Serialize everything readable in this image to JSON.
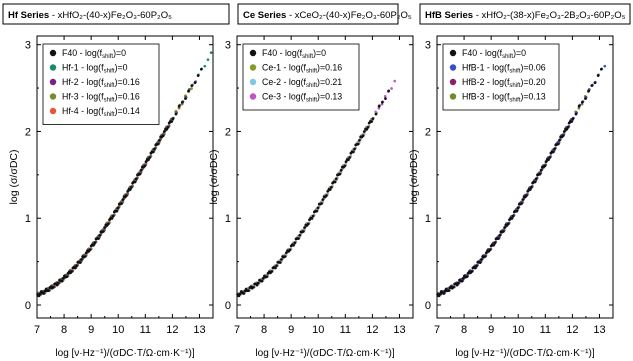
{
  "chart_data": [
    {
      "type": "scatter",
      "title_bold": "Hf Series",
      "title_rest": "- xHfO₂-(40-x)Fe₂O₃-60P₂O₅",
      "xlabel": "log [ν·Hz⁻¹)/(σDC·T/Ω·cm·K⁻¹)]",
      "ylabel": "log (σ/σDC)",
      "xlim": [
        7,
        13.5
      ],
      "ylim": [
        -0.15,
        3.1
      ],
      "xticks": [
        "7",
        "8",
        "9",
        "10",
        "11",
        "12",
        "13"
      ],
      "yticks": [
        "0",
        "1",
        "2",
        "3"
      ],
      "legend_position": "top-left",
      "series": [
        {
          "name": "F40 - log(fshift)=0",
          "color": "#111111",
          "x_max": 13.1
        },
        {
          "name": "Hf-1 - log(fshift)=0",
          "color": "#1b8a6b",
          "x_max": 13.45
        },
        {
          "name": "Hf-2 - log(fshift)=0.16",
          "color": "#7a1f86",
          "x_max": 12.9
        },
        {
          "name": "Hf-3 - log(fshift)=0.16",
          "color": "#7d8a2e",
          "x_max": 12.8
        },
        {
          "name": "Hf-4 - log(fshift)=0.14",
          "color": "#e8553a",
          "x_max": 12.7
        }
      ]
    },
    {
      "type": "scatter",
      "title_bold": "Ce Series",
      "title_rest": "- xCeO₂-(40-x)Fe₂O₃-60P₂O₅",
      "xlabel": "log [ν·Hz⁻¹)/(σDC·T/Ω·cm·K⁻¹)]",
      "ylabel": "log (σ/σDC)",
      "xlim": [
        7,
        13.5
      ],
      "ylim": [
        -0.15,
        3.1
      ],
      "xticks": [
        "7",
        "8",
        "9",
        "10",
        "11",
        "12",
        "13"
      ],
      "yticks": [
        "0",
        "1",
        "2",
        "3"
      ],
      "legend_position": "top-left",
      "series": [
        {
          "name": "F40 - log(fshift)=0",
          "color": "#111111",
          "x_max": 12.6
        },
        {
          "name": "Ce-1 - log(fshift)=0.16",
          "color": "#8a9a2a",
          "x_max": 12.4
        },
        {
          "name": "Ce-2 - log(fshift)=0.21",
          "color": "#7ec8e3",
          "x_max": 12.5
        },
        {
          "name": "Ce-3 - log(fshift)=0.13",
          "color": "#c055c5",
          "x_max": 12.9
        }
      ]
    },
    {
      "type": "scatter",
      "title_bold": "HfB Series",
      "title_rest": "- xHfO₂-(38-x)Fe₂O₃-2B₂O₃-60P₂O₅",
      "xlabel": "log [ν·Hz⁻¹)/(σDC·T/Ω·cm·K⁻¹)]",
      "ylabel": "log (σ/σDC)",
      "xlim": [
        7,
        13.5
      ],
      "ylim": [
        -0.15,
        3.1
      ],
      "xticks": [
        "7",
        "8",
        "9",
        "10",
        "11",
        "12",
        "13"
      ],
      "yticks": [
        "0",
        "1",
        "2",
        "3"
      ],
      "legend_position": "top-left",
      "series": [
        {
          "name": "F40 - log(fshift)=0",
          "color": "#111111",
          "x_max": 13.1
        },
        {
          "name": "HfB-1 - log(fshift)=0.06",
          "color": "#3b4fc4",
          "x_max": 13.3
        },
        {
          "name": "HfB-2 - log(fshift)=0.20",
          "color": "#8a1f6a",
          "x_max": 12.8
        },
        {
          "name": "HfB-3 - log(fshift)=0.13",
          "color": "#6e8a2a",
          "x_max": 12.6
        }
      ]
    }
  ]
}
